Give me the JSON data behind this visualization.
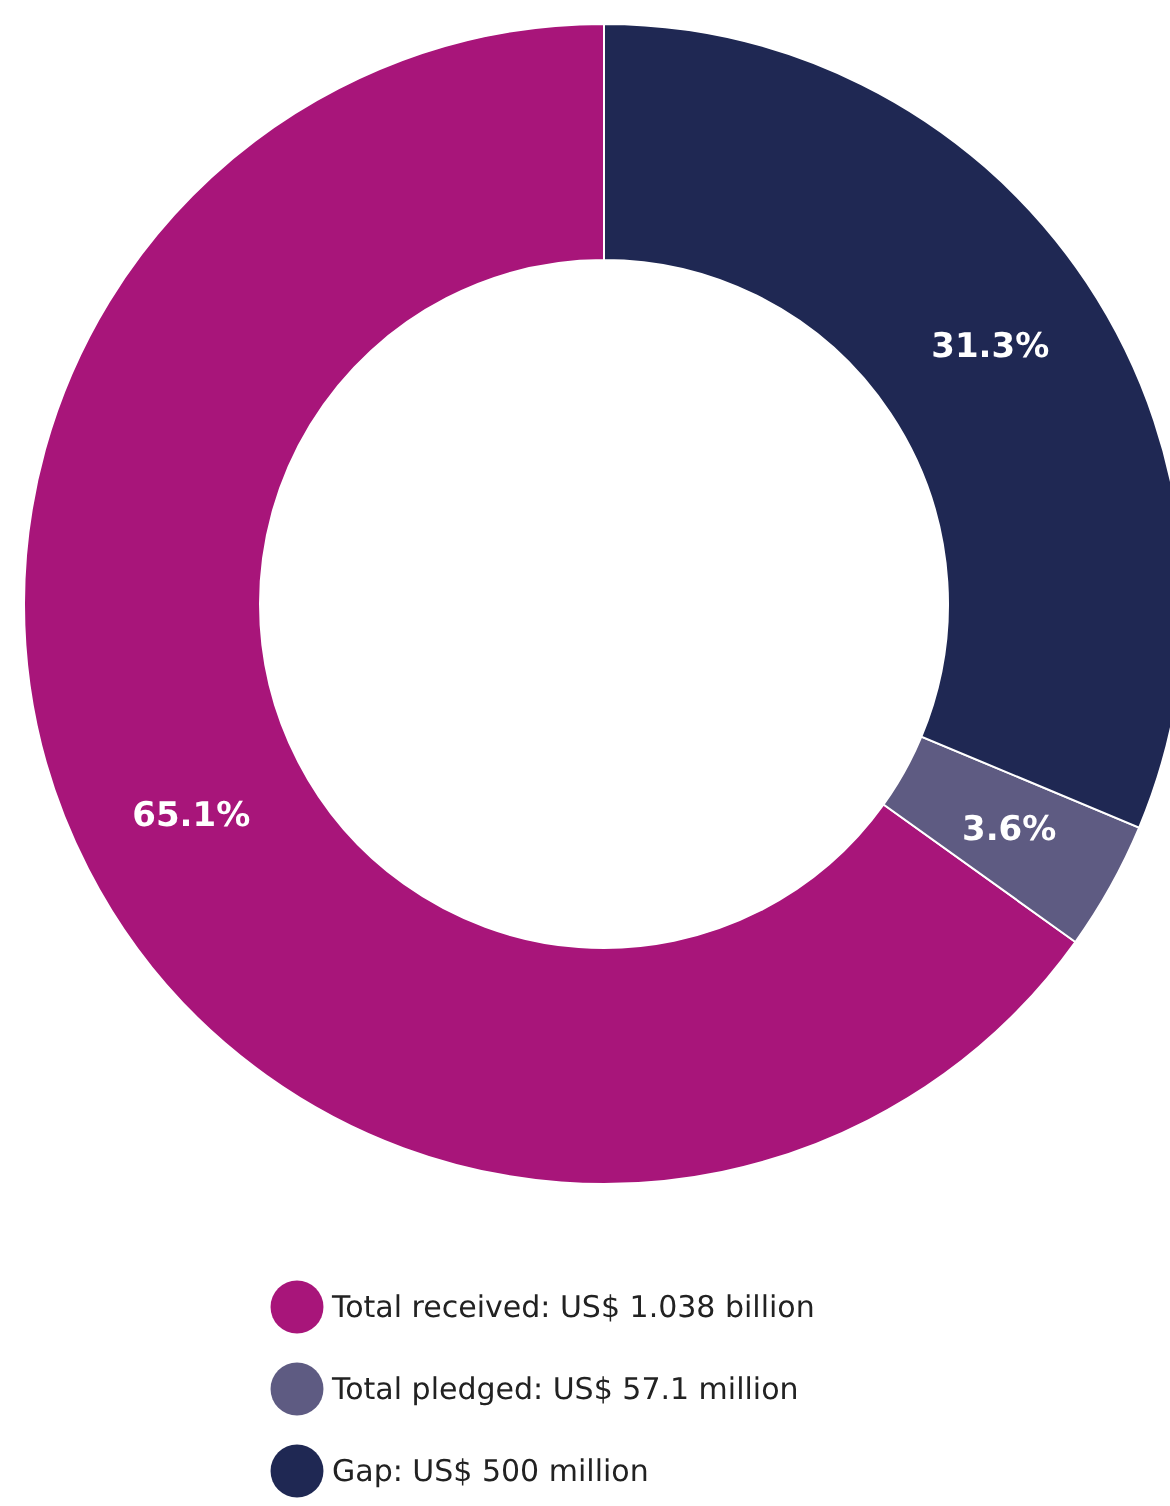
{
  "chart_data": {
    "type": "donut",
    "categories": [
      "Total received: US$ 1.038 billion",
      "Total pledged: US$ 57.1 million",
      "Gap: US$ 500 million"
    ],
    "values": [
      65.1,
      3.6,
      31.3
    ],
    "value_labels": [
      "65.1%",
      "3.6%",
      "31.3%"
    ],
    "colors": [
      "#a8157a",
      "#5e5b82",
      "#1f2853"
    ],
    "legend": "bottom"
  }
}
